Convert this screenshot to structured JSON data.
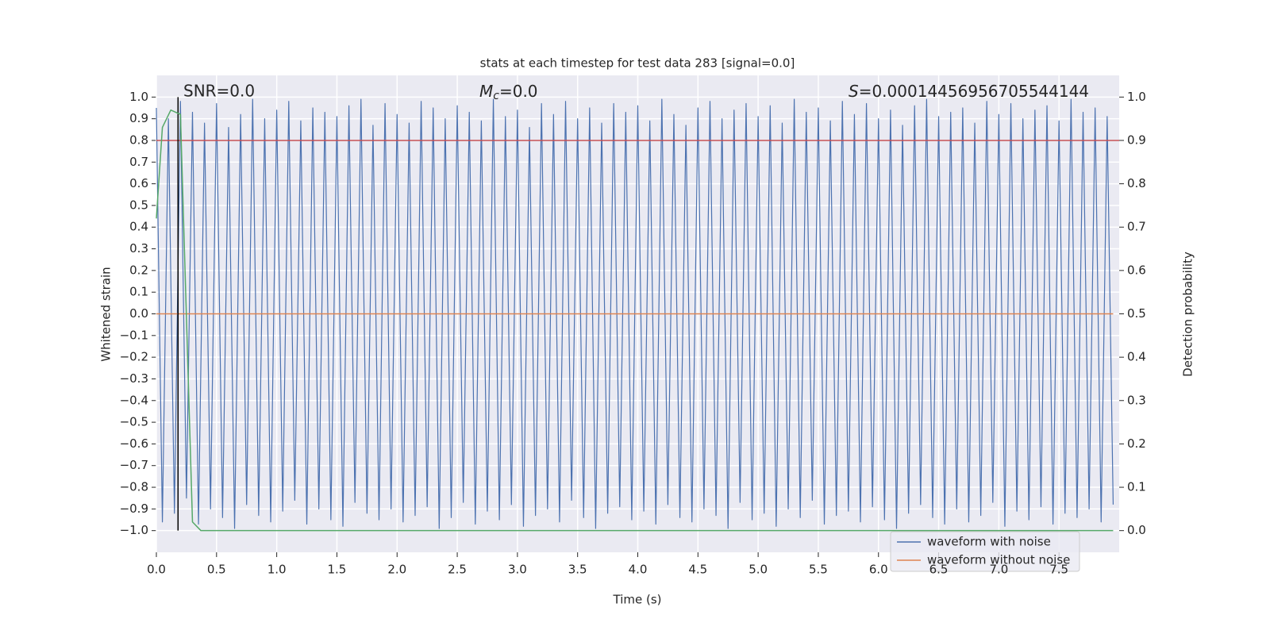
{
  "chart_data": {
    "type": "line",
    "title": "stats at each timestep for test data 283 [signal=0.0]",
    "xlabel": "Time (s)",
    "ylabel": "Whitened strain",
    "y2label": "Detection probability",
    "annotations": {
      "snr": "SNR=0.0",
      "mc": {
        "symbol": "M",
        "subscript": "c",
        "text": "=0.0"
      },
      "s": {
        "symbol": "S",
        "text": "=0.00014456956705544144"
      }
    },
    "xlim": [
      0,
      8.0
    ],
    "ylim": [
      -1.1,
      1.1
    ],
    "y2lim": [
      -0.05,
      1.05
    ],
    "grid": true,
    "legend": "lower right",
    "xticks": [
      {
        "value": 0,
        "label": "0.0"
      },
      {
        "value": 0.5,
        "label": "0.5"
      },
      {
        "value": 1,
        "label": "1.0"
      },
      {
        "value": 1.5,
        "label": "1.5"
      },
      {
        "value": 2,
        "label": "2.0"
      },
      {
        "value": 2.5,
        "label": "2.5"
      },
      {
        "value": 3,
        "label": "3.0"
      },
      {
        "value": 3.5,
        "label": "3.5"
      },
      {
        "value": 4,
        "label": "4.0"
      },
      {
        "value": 4.5,
        "label": "4.5"
      },
      {
        "value": 5,
        "label": "5.0"
      },
      {
        "value": 5.5,
        "label": "5.5"
      },
      {
        "value": 6,
        "label": "6.0"
      },
      {
        "value": 6.5,
        "label": "6.5"
      },
      {
        "value": 7,
        "label": "7.0"
      },
      {
        "value": 7.5,
        "label": "7.5"
      }
    ],
    "yticks": [
      {
        "value": 1,
        "label": "1.0"
      },
      {
        "value": 0.9,
        "label": "0.9"
      },
      {
        "value": 0.8,
        "label": "0.8"
      },
      {
        "value": 0.7,
        "label": "0.7"
      },
      {
        "value": 0.6,
        "label": "0.6"
      },
      {
        "value": 0.5,
        "label": "0.5"
      },
      {
        "value": 0.4,
        "label": "0.4"
      },
      {
        "value": 0.3,
        "label": "0.3"
      },
      {
        "value": 0.2,
        "label": "0.2"
      },
      {
        "value": 0.1,
        "label": "0.1"
      },
      {
        "value": 0,
        "label": "0.0"
      },
      {
        "value": -0.1,
        "label": "−0.1"
      },
      {
        "value": -0.2,
        "label": "−0.2"
      },
      {
        "value": -0.3,
        "label": "−0.3"
      },
      {
        "value": -0.4,
        "label": "−0.4"
      },
      {
        "value": -0.5,
        "label": "−0.5"
      },
      {
        "value": -0.6,
        "label": "−0.6"
      },
      {
        "value": -0.7,
        "label": "−0.7"
      },
      {
        "value": -0.8,
        "label": "−0.8"
      },
      {
        "value": -0.9,
        "label": "−0.9"
      },
      {
        "value": -1,
        "label": "−1.0"
      }
    ],
    "y2ticks": [
      {
        "value": 1,
        "label": "1.0"
      },
      {
        "value": 0.9,
        "label": "0.9"
      },
      {
        "value": 0.8,
        "label": "0.8"
      },
      {
        "value": 0.7,
        "label": "0.7"
      },
      {
        "value": 0.6,
        "label": "0.6"
      },
      {
        "value": 0.5,
        "label": "0.5"
      },
      {
        "value": 0.4,
        "label": "0.4"
      },
      {
        "value": 0.3,
        "label": "0.3"
      },
      {
        "value": 0.2,
        "label": "0.2"
      },
      {
        "value": 0.1,
        "label": "0.1"
      },
      {
        "value": 0,
        "label": "0.0"
      }
    ],
    "series": [
      {
        "name": "waveform with noise",
        "color": "#4c72b0",
        "x": [
          0,
          0.05,
          0.1,
          0.15,
          0.2,
          0.25,
          0.3,
          0.35,
          0.4,
          0.45,
          0.5,
          0.55,
          0.6,
          0.65,
          0.7,
          0.75,
          0.8,
          0.85,
          0.9,
          0.95,
          1,
          1.05,
          1.1,
          1.15,
          1.2,
          1.25,
          1.3,
          1.35,
          1.4,
          1.45,
          1.5,
          1.55,
          1.6,
          1.65,
          1.7,
          1.75,
          1.8,
          1.85,
          1.9,
          1.95,
          2,
          2.05,
          2.1,
          2.15,
          2.2,
          2.25,
          2.3,
          2.35,
          2.4,
          2.45,
          2.5,
          2.55,
          2.6,
          2.65,
          2.7,
          2.75,
          2.8,
          2.85,
          2.9,
          2.95,
          3,
          3.05,
          3.1,
          3.15,
          3.2,
          3.25,
          3.3,
          3.35,
          3.4,
          3.45,
          3.5,
          3.55,
          3.6,
          3.65,
          3.7,
          3.75,
          3.8,
          3.85,
          3.9,
          3.95,
          4,
          4.05,
          4.1,
          4.15,
          4.2,
          4.25,
          4.3,
          4.35,
          4.4,
          4.45,
          4.5,
          4.55,
          4.6,
          4.65,
          4.7,
          4.75,
          4.8,
          4.85,
          4.9,
          4.95,
          5,
          5.05,
          5.1,
          5.15,
          5.2,
          5.25,
          5.3,
          5.35,
          5.4,
          5.45,
          5.5,
          5.55,
          5.6,
          5.65,
          5.7,
          5.75,
          5.8,
          5.85,
          5.9,
          5.95,
          6,
          6.05,
          6.1,
          6.15,
          6.2,
          6.25,
          6.3,
          6.35,
          6.4,
          6.45,
          6.5,
          6.55,
          6.6,
          6.65,
          6.7,
          6.75,
          6.8,
          6.85,
          6.9,
          6.95,
          7,
          7.05,
          7.1,
          7.15,
          7.2,
          7.25,
          7.3,
          7.35,
          7.4,
          7.45,
          7.5,
          7.55,
          7.6,
          7.65,
          7.7,
          7.75,
          7.8,
          7.85,
          7.9,
          7.95
        ],
        "values": [
          0.95,
          -0.96,
          0.9,
          -0.92,
          0.98,
          -0.85,
          0.93,
          -0.97,
          0.88,
          -0.9,
          0.97,
          -0.94,
          0.86,
          -0.99,
          0.92,
          -0.88,
          0.99,
          -0.93,
          0.9,
          -0.96,
          0.94,
          -0.91,
          0.98,
          -0.86,
          0.89,
          -0.97,
          0.95,
          -0.9,
          0.93,
          -0.95,
          0.91,
          -0.98,
          0.96,
          -0.87,
          0.99,
          -0.92,
          0.87,
          -0.95,
          0.97,
          -0.9,
          0.92,
          -0.96,
          0.88,
          -0.93,
          0.98,
          -0.89,
          0.95,
          -0.99,
          0.9,
          -0.94,
          0.96,
          -0.87,
          0.93,
          -0.97,
          0.89,
          -0.91,
          0.99,
          -0.95,
          0.91,
          -0.88,
          0.94,
          -0.98,
          0.86,
          -0.93,
          0.97,
          -0.9,
          0.92,
          -0.96,
          0.98,
          -0.86,
          0.9,
          -0.94,
          0.95,
          -0.99,
          0.88,
          -0.92,
          0.97,
          -0.89,
          0.93,
          -0.95,
          0.96,
          -0.91,
          0.89,
          -0.97,
          0.99,
          -0.88,
          0.92,
          -0.94,
          0.87,
          -0.96,
          0.95,
          -0.9,
          0.98,
          -0.93,
          0.9,
          -0.99,
          0.94,
          -0.87,
          0.97,
          -0.95,
          0.91,
          -0.92,
          0.96,
          -0.98,
          0.88,
          -0.9,
          0.99,
          -0.94,
          0.93,
          -0.86,
          0.95,
          -0.97,
          0.89,
          -0.93,
          0.98,
          -0.91,
          0.92,
          -0.96,
          0.97,
          -0.89,
          0.9,
          -0.95,
          0.94,
          -0.99,
          0.87,
          -0.92,
          0.96,
          -0.88,
          0.99,
          -0.94,
          0.91,
          -0.97,
          0.93,
          -0.9,
          0.95,
          -0.96,
          0.88,
          -0.93,
          0.98,
          -0.87,
          0.92,
          -0.98,
          0.97,
          -0.91,
          0.9,
          -0.95,
          0.94,
          -0.89,
          0.96,
          -0.97,
          0.89,
          -0.92,
          0.99,
          -0.94,
          0.93,
          -0.9,
          0.95,
          -0.96,
          0.91,
          -0.88
        ]
      },
      {
        "name": "waveform without noise",
        "color": "#dd8452",
        "x": [
          0,
          7.95
        ],
        "values": [
          0,
          0
        ]
      }
    ],
    "probability": {
      "color": "#55a868",
      "axis": "y2",
      "x": [
        0,
        0.05,
        0.12,
        0.2,
        0.3,
        0.37,
        7.95
      ],
      "values": [
        0.72,
        0.93,
        0.97,
        0.96,
        0.02,
        0,
        0
      ]
    },
    "hlines": [
      {
        "value": 0.9,
        "axis": "y2",
        "color": "#c44e52"
      }
    ],
    "vlines": [
      {
        "value": 0.18,
        "color": "#000000"
      }
    ]
  }
}
